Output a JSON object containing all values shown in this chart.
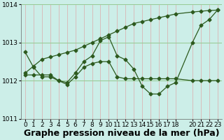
{
  "xlabel": "Graphe pression niveau de la mer (hPa)",
  "bg_color": "#cceee8",
  "grid_color_v": "#ddaaaa",
  "grid_color_h": "#99cc99",
  "line_color": "#2d5a1e",
  "xlim": [
    -0.5,
    23.5
  ],
  "ylim": [
    1011,
    1014
  ],
  "yticks": [
    1011,
    1012,
    1013,
    1014
  ],
  "xticks": [
    0,
    1,
    2,
    3,
    4,
    5,
    6,
    7,
    8,
    9,
    10,
    11,
    12,
    13,
    14,
    15,
    16,
    17,
    18,
    20,
    21,
    22,
    23
  ],
  "series1_x": [
    0,
    1,
    2,
    3,
    4,
    5,
    6,
    7,
    8,
    9,
    10,
    11,
    12,
    13,
    14,
    15,
    16,
    17,
    18,
    20,
    21,
    22,
    23
  ],
  "series1_y": [
    1012.75,
    1012.35,
    1012.1,
    1012.1,
    1012.0,
    1011.95,
    1012.2,
    1012.5,
    1012.65,
    1013.05,
    1013.15,
    1012.65,
    1012.55,
    1012.3,
    1011.85,
    1011.65,
    1011.65,
    1011.85,
    1011.95,
    1013.0,
    1013.45,
    1013.6,
    1013.85
  ],
  "series2_x": [
    0,
    1,
    2,
    3,
    4,
    5,
    6,
    7,
    8,
    9,
    10,
    11,
    12,
    13,
    14,
    15,
    16,
    17,
    18,
    20,
    21,
    22,
    23
  ],
  "series2_y": [
    1012.15,
    1012.15,
    1012.15,
    1012.15,
    1012.0,
    1011.9,
    1012.1,
    1012.35,
    1012.45,
    1012.5,
    1012.5,
    1012.1,
    1012.05,
    1012.05,
    1012.05,
    1012.05,
    1012.05,
    1012.05,
    1012.05,
    1012.0,
    1012.0,
    1012.0,
    1012.0
  ],
  "series3_x": [
    0,
    1,
    2,
    3,
    4,
    5,
    6,
    7,
    8,
    9,
    10,
    11,
    12,
    13,
    14,
    15,
    16,
    17,
    18,
    20,
    21,
    22,
    23
  ],
  "series3_y": [
    1012.2,
    1012.38,
    1012.56,
    1012.62,
    1012.68,
    1012.74,
    1012.8,
    1012.9,
    1013.0,
    1013.1,
    1013.2,
    1013.3,
    1013.4,
    1013.5,
    1013.55,
    1013.6,
    1013.65,
    1013.7,
    1013.75,
    1013.8,
    1013.82,
    1013.84,
    1013.85
  ],
  "xlabel_fontsize": 9,
  "tick_fontsize": 6.5
}
